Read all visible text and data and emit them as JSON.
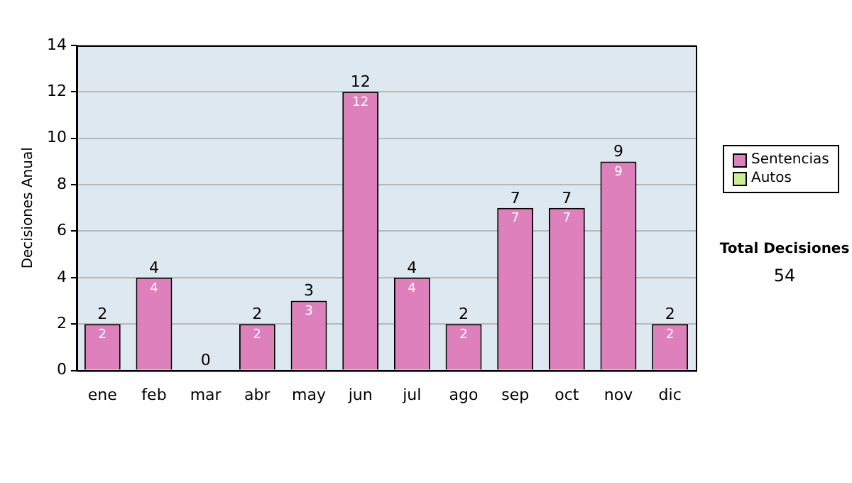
{
  "chart_data": {
    "type": "bar",
    "stacked": true,
    "ylabel": "Decisiones Anual",
    "categories": [
      "ene",
      "feb",
      "mar",
      "abr",
      "may",
      "jun",
      "jul",
      "ago",
      "sep",
      "oct",
      "nov",
      "dic"
    ],
    "series": [
      {
        "name": "Sentencias",
        "color": "#dd80bb",
        "values": [
          2,
          4,
          0,
          2,
          3,
          12,
          4,
          2,
          7,
          7,
          9,
          2
        ],
        "value_labels": [
          "2",
          "4",
          null,
          "2",
          "3",
          "12",
          "4",
          "2",
          "7",
          "7",
          "9",
          "2"
        ]
      },
      {
        "name": "Autos",
        "color": "#ccee99",
        "values": [
          0,
          0,
          0,
          0,
          0,
          0,
          0,
          0,
          0,
          0,
          0,
          0
        ]
      }
    ],
    "totals": [
      "2",
      "4",
      "0",
      "2",
      "3",
      "12",
      "4",
      "2",
      "7",
      "7",
      "9",
      "2"
    ],
    "ylim": [
      0,
      14
    ],
    "yticks": [
      0,
      2,
      4,
      6,
      8,
      10,
      12,
      14
    ],
    "grid": "y",
    "legend": "right",
    "annotations": [
      "Total Decisiones",
      "54"
    ]
  }
}
